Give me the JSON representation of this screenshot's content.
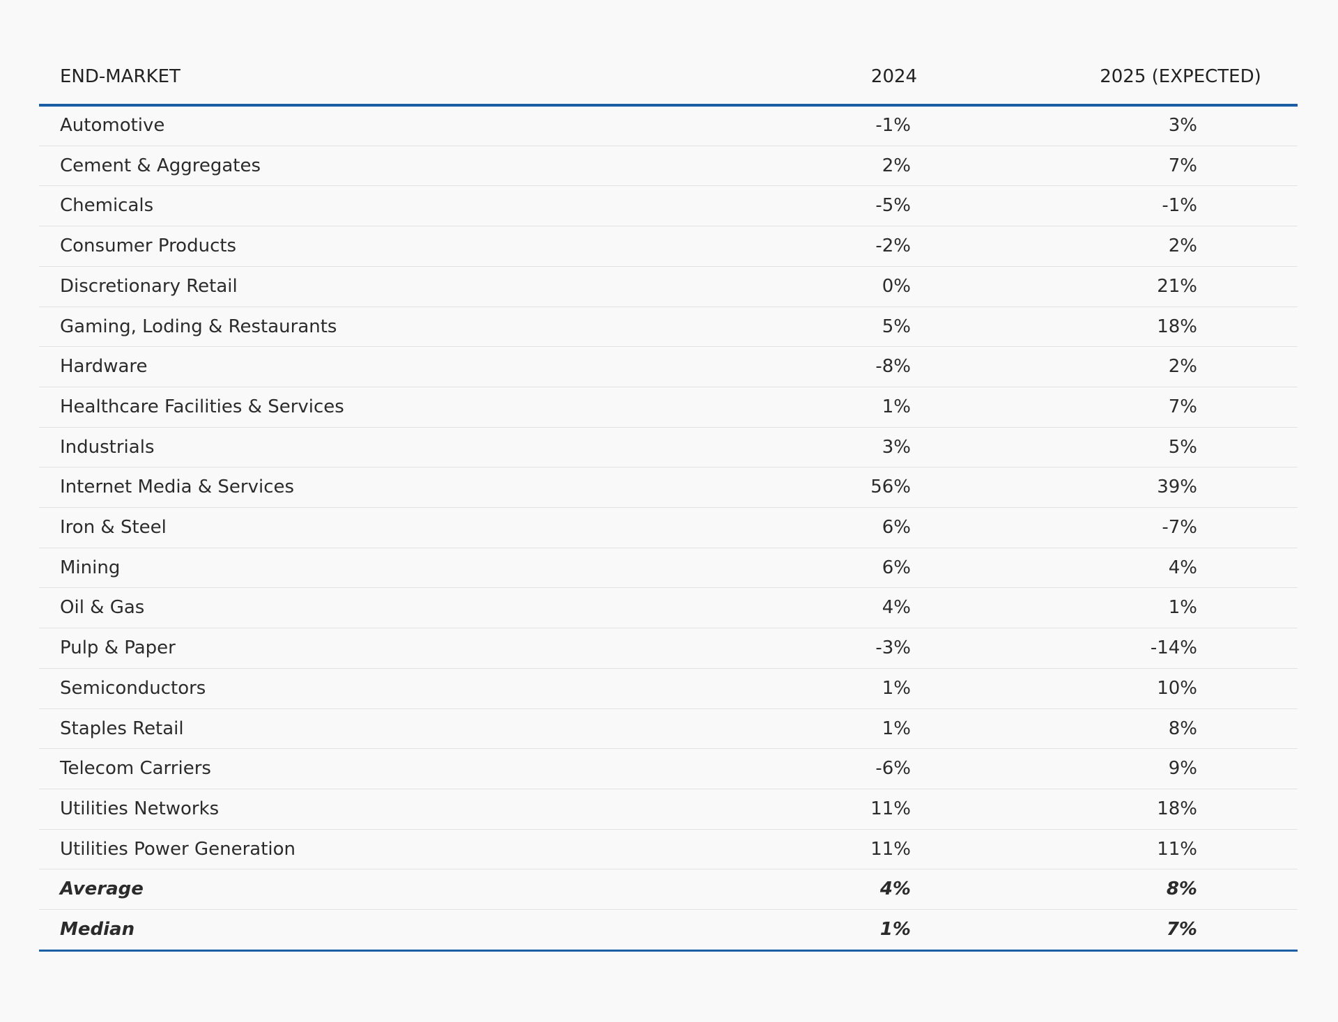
{
  "table": {
    "columns": [
      "END-MARKET",
      "2024",
      "2025 (EXPECTED)"
    ],
    "rows": [
      [
        "Automotive",
        "-1%",
        "3%"
      ],
      [
        "Cement & Aggregates",
        "2%",
        "7%"
      ],
      [
        "Chemicals",
        "-5%",
        "-1%"
      ],
      [
        "Consumer Products",
        "-2%",
        "2%"
      ],
      [
        "Discretionary Retail",
        "0%",
        "21%"
      ],
      [
        "Gaming, Loding & Restaurants",
        "5%",
        "18%"
      ],
      [
        "Hardware",
        "-8%",
        "2%"
      ],
      [
        "Healthcare Facilities & Services",
        "1%",
        "7%"
      ],
      [
        "Industrials",
        "3%",
        "5%"
      ],
      [
        "Internet Media & Services",
        "56%",
        "39%"
      ],
      [
        "Iron & Steel",
        "6%",
        "-7%"
      ],
      [
        "Mining",
        "6%",
        "4%"
      ],
      [
        "Oil & Gas",
        "4%",
        "1%"
      ],
      [
        "Pulp & Paper",
        "-3%",
        "-14%"
      ],
      [
        "Semiconductors",
        "1%",
        "10%"
      ],
      [
        "Staples Retail",
        "1%",
        "8%"
      ],
      [
        "Telecom Carriers",
        "-6%",
        "9%"
      ],
      [
        "Utilities Networks",
        "11%",
        "18%"
      ],
      [
        "Utilities Power Generation",
        "11%",
        "11%"
      ]
    ],
    "summary": [
      [
        "Average",
        "4%",
        "8%"
      ],
      [
        "Median",
        "1%",
        "7%"
      ]
    ]
  }
}
